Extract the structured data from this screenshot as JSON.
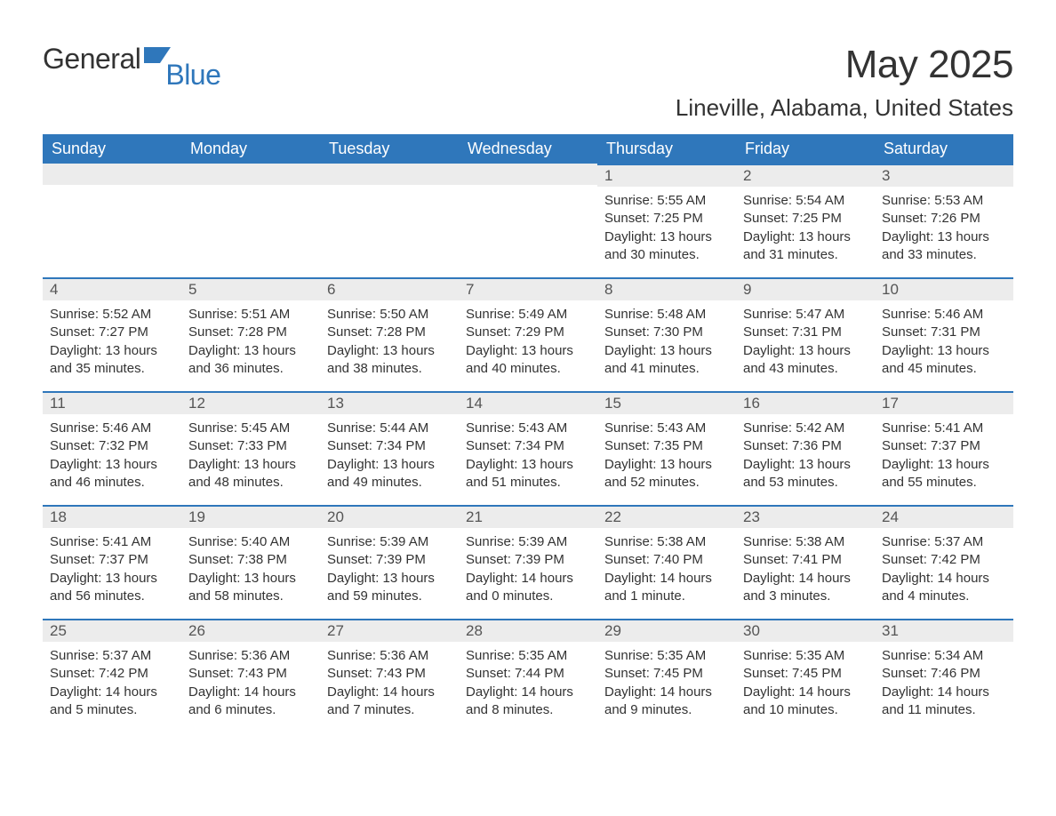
{
  "brand": {
    "part1": "General",
    "part2": "Blue"
  },
  "title": "May 2025",
  "location": "Lineville, Alabama, United States",
  "colors": {
    "header_bg": "#2f77bb",
    "header_text": "#ffffff",
    "daynum_bg": "#ececec",
    "daynum_border": "#2f77bb",
    "body_text": "#333333",
    "page_bg": "#ffffff"
  },
  "weekdays": [
    "Sunday",
    "Monday",
    "Tuesday",
    "Wednesday",
    "Thursday",
    "Friday",
    "Saturday"
  ],
  "weeks": [
    [
      null,
      null,
      null,
      null,
      {
        "n": "1",
        "sr": "5:55 AM",
        "ss": "7:25 PM",
        "dl": "13 hours and 30 minutes."
      },
      {
        "n": "2",
        "sr": "5:54 AM",
        "ss": "7:25 PM",
        "dl": "13 hours and 31 minutes."
      },
      {
        "n": "3",
        "sr": "5:53 AM",
        "ss": "7:26 PM",
        "dl": "13 hours and 33 minutes."
      }
    ],
    [
      {
        "n": "4",
        "sr": "5:52 AM",
        "ss": "7:27 PM",
        "dl": "13 hours and 35 minutes."
      },
      {
        "n": "5",
        "sr": "5:51 AM",
        "ss": "7:28 PM",
        "dl": "13 hours and 36 minutes."
      },
      {
        "n": "6",
        "sr": "5:50 AM",
        "ss": "7:28 PM",
        "dl": "13 hours and 38 minutes."
      },
      {
        "n": "7",
        "sr": "5:49 AM",
        "ss": "7:29 PM",
        "dl": "13 hours and 40 minutes."
      },
      {
        "n": "8",
        "sr": "5:48 AM",
        "ss": "7:30 PM",
        "dl": "13 hours and 41 minutes."
      },
      {
        "n": "9",
        "sr": "5:47 AM",
        "ss": "7:31 PM",
        "dl": "13 hours and 43 minutes."
      },
      {
        "n": "10",
        "sr": "5:46 AM",
        "ss": "7:31 PM",
        "dl": "13 hours and 45 minutes."
      }
    ],
    [
      {
        "n": "11",
        "sr": "5:46 AM",
        "ss": "7:32 PM",
        "dl": "13 hours and 46 minutes."
      },
      {
        "n": "12",
        "sr": "5:45 AM",
        "ss": "7:33 PM",
        "dl": "13 hours and 48 minutes."
      },
      {
        "n": "13",
        "sr": "5:44 AM",
        "ss": "7:34 PM",
        "dl": "13 hours and 49 minutes."
      },
      {
        "n": "14",
        "sr": "5:43 AM",
        "ss": "7:34 PM",
        "dl": "13 hours and 51 minutes."
      },
      {
        "n": "15",
        "sr": "5:43 AM",
        "ss": "7:35 PM",
        "dl": "13 hours and 52 minutes."
      },
      {
        "n": "16",
        "sr": "5:42 AM",
        "ss": "7:36 PM",
        "dl": "13 hours and 53 minutes."
      },
      {
        "n": "17",
        "sr": "5:41 AM",
        "ss": "7:37 PM",
        "dl": "13 hours and 55 minutes."
      }
    ],
    [
      {
        "n": "18",
        "sr": "5:41 AM",
        "ss": "7:37 PM",
        "dl": "13 hours and 56 minutes."
      },
      {
        "n": "19",
        "sr": "5:40 AM",
        "ss": "7:38 PM",
        "dl": "13 hours and 58 minutes."
      },
      {
        "n": "20",
        "sr": "5:39 AM",
        "ss": "7:39 PM",
        "dl": "13 hours and 59 minutes."
      },
      {
        "n": "21",
        "sr": "5:39 AM",
        "ss": "7:39 PM",
        "dl": "14 hours and 0 minutes."
      },
      {
        "n": "22",
        "sr": "5:38 AM",
        "ss": "7:40 PM",
        "dl": "14 hours and 1 minute."
      },
      {
        "n": "23",
        "sr": "5:38 AM",
        "ss": "7:41 PM",
        "dl": "14 hours and 3 minutes."
      },
      {
        "n": "24",
        "sr": "5:37 AM",
        "ss": "7:42 PM",
        "dl": "14 hours and 4 minutes."
      }
    ],
    [
      {
        "n": "25",
        "sr": "5:37 AM",
        "ss": "7:42 PM",
        "dl": "14 hours and 5 minutes."
      },
      {
        "n": "26",
        "sr": "5:36 AM",
        "ss": "7:43 PM",
        "dl": "14 hours and 6 minutes."
      },
      {
        "n": "27",
        "sr": "5:36 AM",
        "ss": "7:43 PM",
        "dl": "14 hours and 7 minutes."
      },
      {
        "n": "28",
        "sr": "5:35 AM",
        "ss": "7:44 PM",
        "dl": "14 hours and 8 minutes."
      },
      {
        "n": "29",
        "sr": "5:35 AM",
        "ss": "7:45 PM",
        "dl": "14 hours and 9 minutes."
      },
      {
        "n": "30",
        "sr": "5:35 AM",
        "ss": "7:45 PM",
        "dl": "14 hours and 10 minutes."
      },
      {
        "n": "31",
        "sr": "5:34 AM",
        "ss": "7:46 PM",
        "dl": "14 hours and 11 minutes."
      }
    ]
  ],
  "labels": {
    "sunrise": "Sunrise: ",
    "sunset": "Sunset: ",
    "daylight": "Daylight: "
  }
}
